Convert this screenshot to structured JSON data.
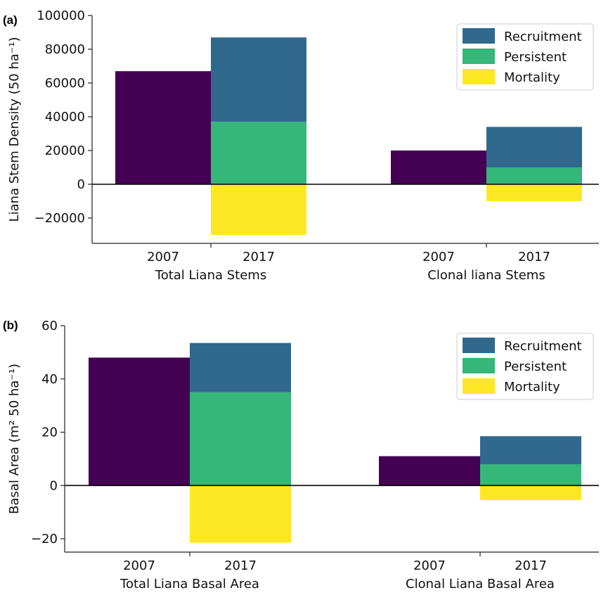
{
  "chart_data": [
    {
      "type": "bar",
      "panel_label": "(a)",
      "ylabel": "Liana Stem Density (50 ha⁻¹)",
      "ylim": [
        -35000,
        100000
      ],
      "yticks": [
        -20000,
        0,
        20000,
        40000,
        60000,
        80000,
        100000
      ],
      "ytick_labels": [
        "−20000",
        "0",
        "20000",
        "40000",
        "60000",
        "80000",
        "100000"
      ],
      "groups": [
        {
          "name": "Total Liana Stems",
          "bars": [
            {
              "year": "2007",
              "value": 67000
            },
            {
              "year": "2017",
              "persistent": 37000,
              "recruitment": 50000,
              "mortality": -30000
            }
          ]
        },
        {
          "name": "Clonal liana Stems",
          "bars": [
            {
              "year": "2007",
              "value": 20000
            },
            {
              "year": "2017",
              "persistent": 10000,
              "recruitment": 24000,
              "mortality": -10000
            }
          ]
        }
      ],
      "legend": [
        "Recruitment",
        "Persistent",
        "Mortality"
      ],
      "legend_position": "top-right",
      "grid": false
    },
    {
      "type": "bar",
      "panel_label": "(b)",
      "ylabel": "Basal Area (m² 50 ha⁻¹)",
      "ylim": [
        -25,
        60
      ],
      "yticks": [
        -20,
        0,
        20,
        40,
        60
      ],
      "ytick_labels": [
        "−20",
        "0",
        "20",
        "40",
        "60"
      ],
      "groups": [
        {
          "name": "Total Liana Basal Area",
          "bars": [
            {
              "year": "2007",
              "value": 48
            },
            {
              "year": "2017",
              "persistent": 35,
              "recruitment": 18.5,
              "mortality": -21.5
            }
          ]
        },
        {
          "name": "Clonal Liana Basal Area",
          "bars": [
            {
              "year": "2007",
              "value": 11
            },
            {
              "year": "2017",
              "persistent": 8,
              "recruitment": 10.5,
              "mortality": -5.5
            }
          ]
        }
      ],
      "legend": [
        "Recruitment",
        "Persistent",
        "Mortality"
      ],
      "legend_position": "top-right",
      "grid": false
    }
  ],
  "colors": {
    "y2007": "#440154",
    "recruitment": "#31688e",
    "persistent": "#35b779",
    "mortality": "#fde725"
  }
}
